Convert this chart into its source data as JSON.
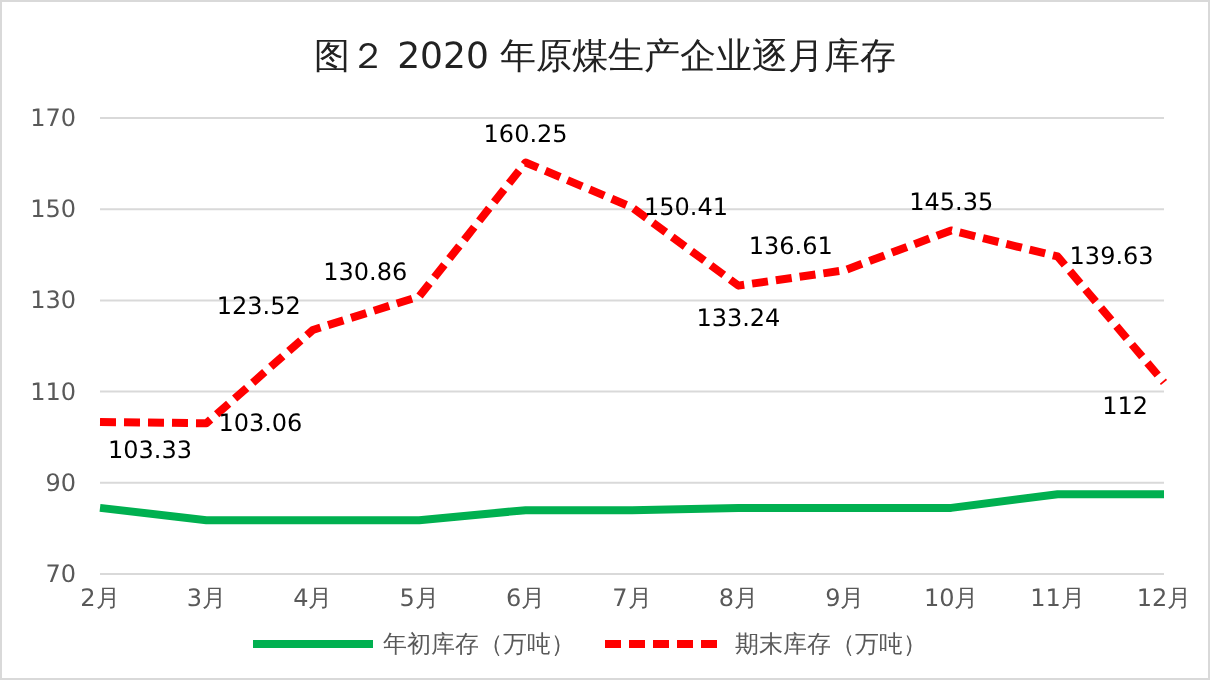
{
  "chart_data": {
    "type": "line",
    "title": "图２ 2020 年原煤生产企业逐月库存",
    "categories": [
      "2月",
      "3月",
      "4月",
      "5月",
      "6月",
      "7月",
      "8月",
      "9月",
      "10月",
      "11月",
      "12月"
    ],
    "series": [
      {
        "name": "年初库存（万吨）",
        "color": "#00b050",
        "line_style": "solid",
        "values": [
          84.5,
          81.8,
          81.8,
          81.8,
          84.0,
          84.0,
          84.5,
          84.5,
          84.5,
          87.5,
          87.5
        ]
      },
      {
        "name": "期末库存（万吨）",
        "color": "#ff0000",
        "line_style": "dashed",
        "data_labels": true,
        "values": [
          103.33,
          103.06,
          123.52,
          130.86,
          160.25,
          150.41,
          133.24,
          136.61,
          145.35,
          139.63,
          112
        ]
      }
    ],
    "ylim": [
      70,
      170
    ],
    "yticks": [
      70,
      90,
      110,
      130,
      150,
      170
    ],
    "grid": "y",
    "legend": "bottom",
    "marker": "none"
  }
}
